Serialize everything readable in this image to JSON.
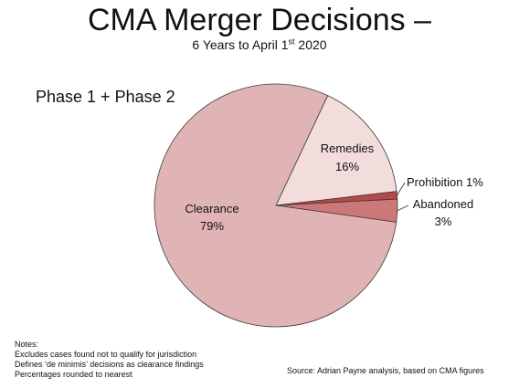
{
  "title": "CMA Merger Decisions –",
  "subtitle": {
    "text": "6 Years to April 1",
    "sup": "st",
    "after": " 2020"
  },
  "scope_label": "Phase 1 + Phase 2",
  "chart_data": {
    "type": "pie",
    "title": "CMA Merger Decisions –",
    "subtitle": "6 Years to April 1st 2020",
    "slices": [
      {
        "label": "Clearance",
        "value": 79,
        "display": "79%",
        "color": "#e0b4b4"
      },
      {
        "label": "Remedies",
        "value": 16,
        "display": "16%",
        "color": "#f2dcdc"
      },
      {
        "label": "Prohibition",
        "value": 1,
        "display": "1%",
        "color": "#b84848"
      },
      {
        "label": "Abandoned",
        "value": 3,
        "display": "3%",
        "color": "#cd7878"
      }
    ],
    "legend": "none"
  },
  "notes": {
    "heading": "Notes:",
    "lines": [
      "Excludes cases found not to qualify for jurisdiction",
      "Defines ‘de minimis’ decisions as clearance findings",
      "Percentages rounded to nearest"
    ]
  },
  "source": "Source: Adrian Payne analysis, based on CMA figures"
}
